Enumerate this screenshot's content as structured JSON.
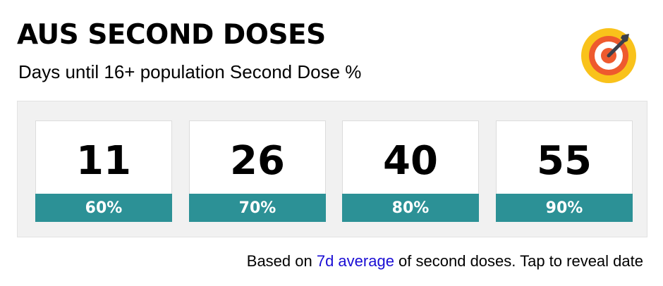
{
  "header": {
    "title": "AUS SECOND DOSES",
    "subtitle": "Days until 16+ population Second Dose %"
  },
  "logo": {
    "icon": "bullseye-target-icon",
    "colors": {
      "outer": "#f9c21b",
      "ring": "#ee5a2e",
      "inner": "#ffffff",
      "dart": "#3c3f4a"
    }
  },
  "cards": [
    {
      "value": "11",
      "label": "60%"
    },
    {
      "value": "26",
      "label": "70%"
    },
    {
      "value": "40",
      "label": "80%"
    },
    {
      "value": "55",
      "label": "90%"
    }
  ],
  "footnote": {
    "prefix": "Based on ",
    "link": "7d average",
    "suffix": " of second doses. Tap to reveal date"
  },
  "colors": {
    "accent": "#2c9196",
    "link": "#1a0dd4",
    "panel_background": "#f1f1f1"
  }
}
